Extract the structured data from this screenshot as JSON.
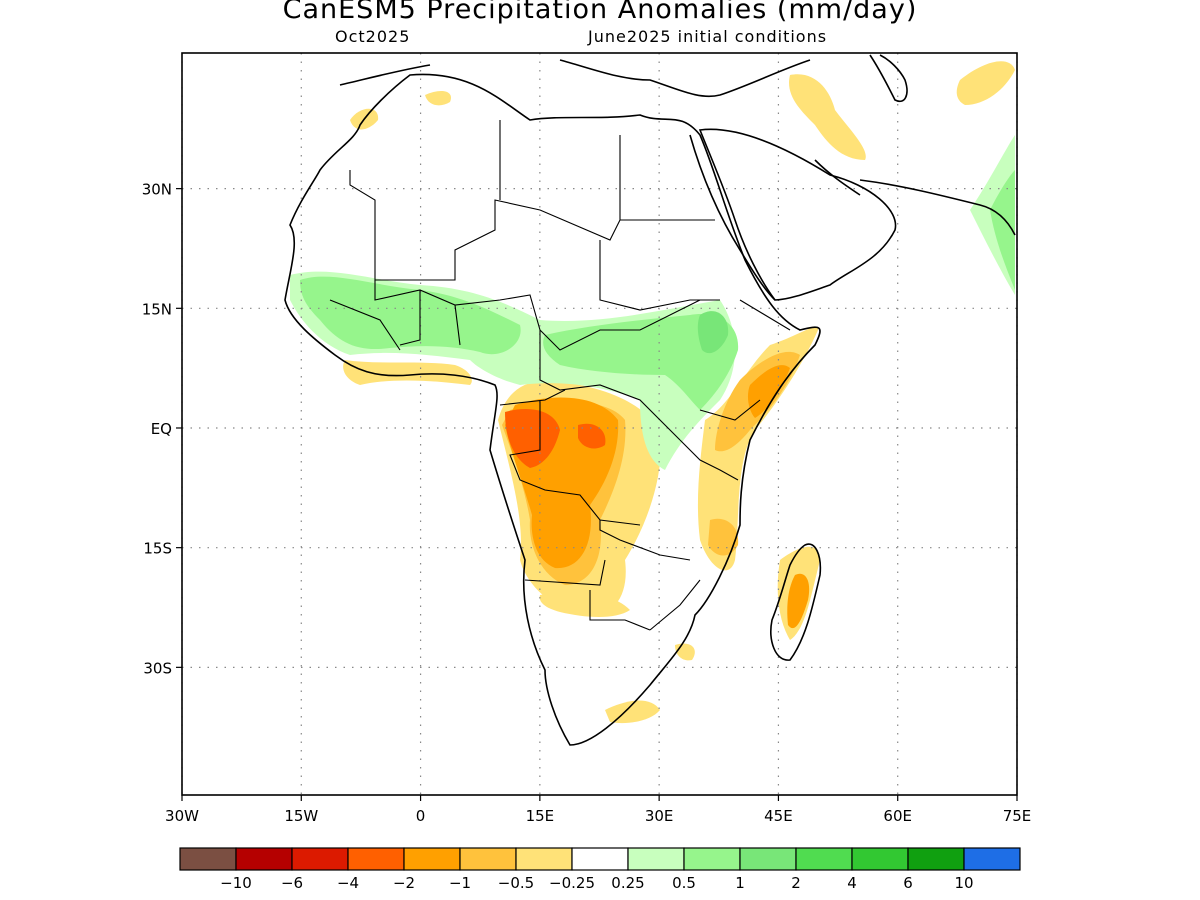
{
  "title": "CanESM5 Precipitation Anomalies (mm/day)",
  "subtitle_left": "Oct2025",
  "subtitle_right": "June2025 initial conditions",
  "map": {
    "lon_range": [
      -30,
      75
    ],
    "lat_range": [
      -46,
      47
    ],
    "lat_ticks": [
      {
        "value": 30,
        "label": "30N"
      },
      {
        "value": 15,
        "label": "15N"
      },
      {
        "value": 0,
        "label": "EQ"
      },
      {
        "value": -15,
        "label": "15S"
      },
      {
        "value": -30,
        "label": "30S"
      }
    ],
    "lon_ticks": [
      {
        "value": -30,
        "label": "30W"
      },
      {
        "value": -15,
        "label": "15W"
      },
      {
        "value": 0,
        "label": "0"
      },
      {
        "value": 15,
        "label": "15E"
      },
      {
        "value": 30,
        "label": "30E"
      },
      {
        "value": 45,
        "label": "45E"
      },
      {
        "value": 60,
        "label": "60E"
      },
      {
        "value": 75,
        "label": "75E"
      }
    ]
  },
  "colorbar": {
    "colors": [
      "#7b4f42",
      "#b50000",
      "#dc1a00",
      "#ff6000",
      "#ffa000",
      "#ffc23c",
      "#ffe278",
      "#ffffff",
      "#c8ffbe",
      "#96f58c",
      "#78e678",
      "#50dc50",
      "#32c832",
      "#10a010",
      "#1e6ee6"
    ],
    "labels": [
      "−10",
      "−6",
      "−4",
      "−2",
      "−1",
      "−0.5",
      "−0.25",
      "0.25",
      "0.5",
      "1",
      "2",
      "4",
      "6",
      "10"
    ]
  },
  "anomaly_regions": [
    {
      "name": "central-africa-dry",
      "level": -1,
      "color": "#ffa000"
    },
    {
      "name": "congo-core-dry",
      "level": -2,
      "color": "#ff6000"
    },
    {
      "name": "east-africa-dry",
      "level": -0.5,
      "color": "#ffc23c"
    },
    {
      "name": "sahel-wet",
      "level": 0.5,
      "color": "#96f58c"
    },
    {
      "name": "ethiopia-wet",
      "level": 1,
      "color": "#78e678"
    },
    {
      "name": "madagascar-dry",
      "level": -1,
      "color": "#ffa000"
    }
  ]
}
